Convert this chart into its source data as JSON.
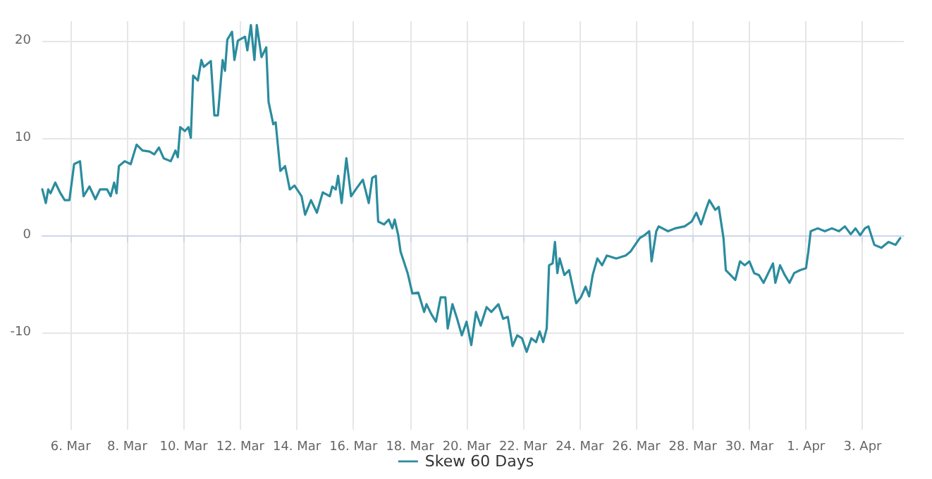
{
  "chart_data": {
    "type": "line",
    "xlim": [
      "--03-05T00:00",
      "--04-04T11:00"
    ],
    "ylim": [
      -20,
      22
    ],
    "yticks": [
      -10,
      0,
      10,
      20
    ],
    "xticks": [
      {
        "value": "--03-06",
        "label": "6. Mar"
      },
      {
        "value": "--03-08",
        "label": "8. Mar"
      },
      {
        "value": "--03-10",
        "label": "10. Mar"
      },
      {
        "value": "--03-12",
        "label": "12. Mar"
      },
      {
        "value": "--03-14",
        "label": "14. Mar"
      },
      {
        "value": "--03-16",
        "label": "16. Mar"
      },
      {
        "value": "--03-18",
        "label": "18. Mar"
      },
      {
        "value": "--03-20",
        "label": "20. Mar"
      },
      {
        "value": "--03-22",
        "label": "22. Mar"
      },
      {
        "value": "--03-24",
        "label": "24. Mar"
      },
      {
        "value": "--03-26",
        "label": "26. Mar"
      },
      {
        "value": "--03-28",
        "label": "28. Mar"
      },
      {
        "value": "--03-30",
        "label": "30. Mar"
      },
      {
        "value": "--04-01",
        "label": "1. Apr"
      },
      {
        "value": "--04-03",
        "label": "3. Apr"
      }
    ],
    "grid": true,
    "legend": "bottom",
    "marker": "none",
    "line_style": "solid",
    "x": [
      "--03-05T00:00",
      "--03-05T03:00",
      "--03-05T05:00",
      "--03-05T07:00",
      "--03-05T11:00",
      "--03-05T15:00",
      "--03-05T19:00",
      "--03-05T23:00",
      "--03-06T03:00",
      "--03-06T08:00",
      "--03-06T11:00",
      "--03-06T16:00",
      "--03-06T21:00",
      "--03-07T01:00",
      "--03-07T07:00",
      "--03-07T10:00",
      "--03-07T13:00",
      "--03-07T15:00",
      "--03-07T17:00",
      "--03-07T22:00",
      "--03-08T03:00",
      "--03-08T08:00",
      "--03-08T13:00",
      "--03-08T19:00",
      "--03-08T23:00",
      "--03-09T03:00",
      "--03-09T07:00",
      "--03-09T13:00",
      "--03-09T17:00",
      "--03-09T19:00",
      "--03-09T21:00",
      "--03-10T01:00",
      "--03-10T04:00",
      "--03-10T06:00",
      "--03-10T08:00",
      "--03-10T12:00",
      "--03-10T15:00",
      "--03-10T17:00",
      "--03-10T23:00",
      "--03-11T02:00",
      "--03-11T05:00",
      "--03-11T09:00",
      "--03-11T11:00",
      "--03-11T13:00",
      "--03-11T17:00",
      "--03-11T19:00",
      "--03-11T22:00",
      "--03-12T04:00",
      "--03-12T06:00",
      "--03-12T09:00",
      "--03-12T12:00",
      "--03-12T14:00",
      "--03-12T18:00",
      "--03-12T22:00",
      "--03-13T00:00",
      "--03-13T04:00",
      "--03-13T06:00",
      "--03-13T10:00",
      "--03-13T14:00",
      "--03-13T18:00",
      "--03-13T22:00",
      "--03-14T04:00",
      "--03-14T07:00",
      "--03-14T12:00",
      "--03-14T17:00",
      "--03-14T22:00",
      "--03-15T04:00",
      "--03-15T06:00",
      "--03-15T09:00",
      "--03-15T11:00",
      "--03-15T14:00",
      "--03-15T18:00",
      "--03-15T22:00",
      "--03-16T02:00",
      "--03-16T08:00",
      "--03-16T13:00",
      "--03-16T16:00",
      "--03-16T19:00",
      "--03-16T21:00",
      "--03-17T02:00",
      "--03-17T06:00",
      "--03-17T09:00",
      "--03-17T11:00",
      "--03-17T14:00",
      "--03-17T16:00",
      "--03-17T22:00",
      "--03-18T02:00",
      "--03-18T07:00",
      "--03-18T12:00",
      "--03-18T14:00",
      "--03-18T18:00",
      "--03-18T22:00",
      "--03-19T02:00",
      "--03-19T06:00",
      "--03-19T08:00",
      "--03-19T12:00",
      "--03-19T16:00",
      "--03-19T20:00",
      "--03-20T00:00",
      "--03-20T04:00",
      "--03-20T08:00",
      "--03-20T12:00",
      "--03-20T17:00",
      "--03-20T21:00",
      "--03-21T03:00",
      "--03-21T07:00",
      "--03-21T11:00",
      "--03-21T15:00",
      "--03-21T19:00",
      "--03-21T23:00",
      "--03-22T03:00",
      "--03-22T07:00",
      "--03-22T11:00",
      "--03-22T14:00",
      "--03-22T17:00",
      "--03-22T20:00",
      "--03-22T22:00",
      "--03-23T01:00",
      "--03-23T03:00",
      "--03-23T05:00",
      "--03-23T07:00",
      "--03-23T11:00",
      "--03-23T15:00",
      "--03-23T21:00",
      "--03-24T01:00",
      "--03-24T05:00",
      "--03-24T08:00",
      "--03-24T11:00",
      "--03-24T15:00",
      "--03-24T19:00",
      "--03-24T23:00",
      "--03-25T07:00",
      "--03-25T15:00",
      "--03-25T19:00",
      "--03-25T23:00",
      "--03-26T03:00",
      "--03-26T07:00",
      "--03-26T11:00",
      "--03-26T13:00",
      "--03-26T17:00",
      "--03-26T19:00",
      "--03-27T03:00",
      "--03-27T09:00",
      "--03-27T17:00",
      "--03-27T23:00",
      "--03-28T03:00",
      "--03-28T07:00",
      "--03-28T11:00",
      "--03-28T14:00",
      "--03-28T19:00",
      "--03-28T22:00",
      "--03-29T02:00",
      "--03-29T04:00",
      "--03-29T08:00",
      "--03-29T12:00",
      "--03-29T16:00",
      "--03-29T20:00",
      "--03-30T00:00",
      "--03-30T04:00",
      "--03-30T08:00",
      "--03-30T12:00",
      "--03-30T16:00",
      "--03-30T20:00",
      "--03-30T22:00",
      "--03-31T02:00",
      "--03-31T06:00",
      "--03-31T10:00",
      "--03-31T14:00",
      "--03-31T19:00",
      "--04-01T00:00",
      "--04-01T02:00",
      "--04-01T04:00",
      "--04-01T10:00",
      "--04-01T16:00",
      "--04-01T22:00",
      "--04-02T04:00",
      "--04-02T09:00",
      "--04-02T14:00",
      "--04-02T18:00",
      "--04-02T22:00",
      "--04-03T02:00",
      "--04-03T05:00",
      "--04-03T10:00",
      "--04-03T16:00",
      "--04-03T22:00",
      "--04-04T04:00",
      "--04-04T08:00"
    ],
    "series": [
      {
        "name": "Skew 60 Days",
        "color": "#2b8c9e",
        "values": [
          4.7,
          3.3,
          4.7,
          4.3,
          5.4,
          4.4,
          3.6,
          3.6,
          7.3,
          7.6,
          4.0,
          5.0,
          3.7,
          4.7,
          4.7,
          4.0,
          5.4,
          4.3,
          7.1,
          7.6,
          7.3,
          9.3,
          8.7,
          8.6,
          8.3,
          9.0,
          7.9,
          7.6,
          8.7,
          8.0,
          11.1,
          10.7,
          11.1,
          10.0,
          16.4,
          15.9,
          18.0,
          17.3,
          17.9,
          12.3,
          12.3,
          18.0,
          16.9,
          20.1,
          20.9,
          18.0,
          20.0,
          20.4,
          19.0,
          21.6,
          18.0,
          21.6,
          18.3,
          19.3,
          13.7,
          11.4,
          11.6,
          6.6,
          7.1,
          4.7,
          5.1,
          4.0,
          2.1,
          3.6,
          2.3,
          4.4,
          4.0,
          5.0,
          4.7,
          6.1,
          3.3,
          7.9,
          4.0,
          4.7,
          5.7,
          3.3,
          5.9,
          6.1,
          1.4,
          1.1,
          1.6,
          0.7,
          1.6,
          0,
          -1.7,
          -3.9,
          -6.0,
          -5.9,
          -7.9,
          -7.1,
          -8.1,
          -8.9,
          -6.4,
          -6.4,
          -9.6,
          -7.1,
          -8.6,
          -10.3,
          -8.9,
          -11.3,
          -7.9,
          -9.3,
          -7.4,
          -7.9,
          -7.1,
          -8.6,
          -8.4,
          -11.4,
          -10.3,
          -10.6,
          -12.0,
          -10.6,
          -11.0,
          -9.9,
          -11.0,
          -9.6,
          -3.1,
          -2.9,
          -0.7,
          -3.9,
          -2.4,
          -4.1,
          -3.6,
          -7.0,
          -6.4,
          -5.3,
          -6.3,
          -4.1,
          -2.4,
          -3.1,
          -2.1,
          -2.4,
          -2.1,
          -1.7,
          -1.0,
          -0.3,
          0,
          0.4,
          -2.7,
          0.4,
          0.9,
          0.4,
          0.7,
          0.9,
          1.4,
          2.3,
          1.1,
          2.6,
          3.6,
          2.6,
          2.9,
          -0.3,
          -3.6,
          -4.1,
          -4.6,
          -2.7,
          -3.1,
          -2.7,
          -3.9,
          -4.1,
          -4.9,
          -3.9,
          -2.9,
          -4.9,
          -3.1,
          -4.1,
          -4.9,
          -3.9,
          -3.6,
          -3.4,
          -1.7,
          0.4,
          0.7,
          0.4,
          0.7,
          0.4,
          0.9,
          0.1,
          0.7,
          0,
          0.7,
          0.9,
          -1.0,
          -1.3,
          -0.7,
          -1.0,
          -0.3
        ]
      }
    ]
  }
}
